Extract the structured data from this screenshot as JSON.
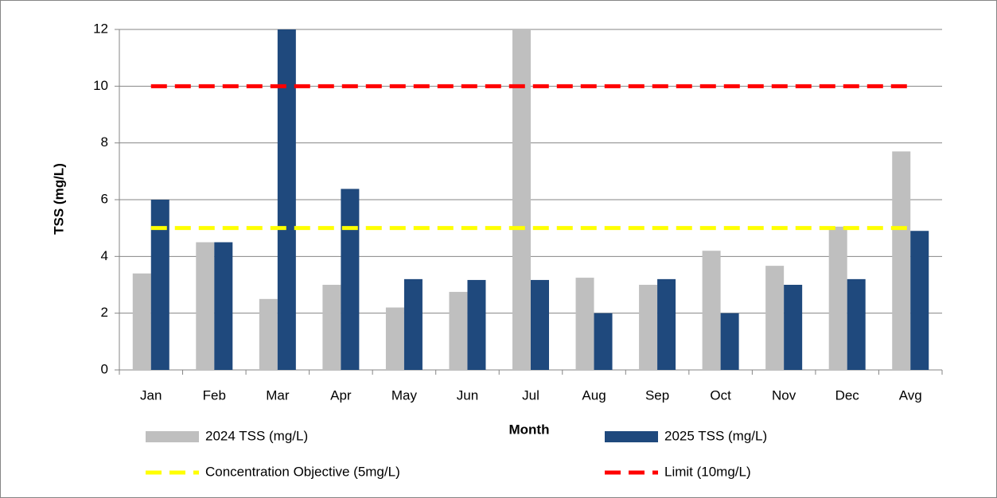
{
  "chart_data": {
    "type": "bar",
    "x_label": "Month",
    "y_label": "TSS (mg/L)",
    "categories": [
      "Jan",
      "Feb",
      "Mar",
      "Apr",
      "May",
      "Jun",
      "Jul",
      "Aug",
      "Sep",
      "Oct",
      "Nov",
      "Dec",
      "Avg"
    ],
    "series": [
      {
        "name": "2024 TSS (mg/L)",
        "type": "bar",
        "color": "#bfbfbf",
        "values": [
          3.4,
          4.5,
          2.5,
          3.0,
          2.2,
          2.75,
          12,
          3.25,
          3.0,
          4.2,
          3.67,
          5.05,
          7.7
        ]
      },
      {
        "name": "2025 TSS (mg/L)",
        "type": "bar",
        "color": "#1f497d",
        "values": [
          6.0,
          4.5,
          12,
          6.38,
          3.2,
          3.17,
          3.17,
          2.0,
          3.2,
          2.0,
          3.0,
          3.2,
          4.9
        ]
      },
      {
        "name": "Concentration Objective (5mg/L)",
        "type": "line",
        "color": "#ffff00",
        "values": [
          5,
          5,
          5,
          5,
          5,
          5,
          5,
          5,
          5,
          5,
          5,
          5,
          5
        ]
      },
      {
        "name": "Limit (10mg/L)",
        "type": "line",
        "color": "#ff0000",
        "values": [
          10,
          10,
          10,
          10,
          10,
          10,
          10,
          10,
          10,
          10,
          10,
          10,
          10
        ]
      }
    ],
    "ylim": [
      0,
      12
    ],
    "yticks": [
      0,
      2,
      4,
      6,
      8,
      10,
      12
    ],
    "grid": true
  }
}
